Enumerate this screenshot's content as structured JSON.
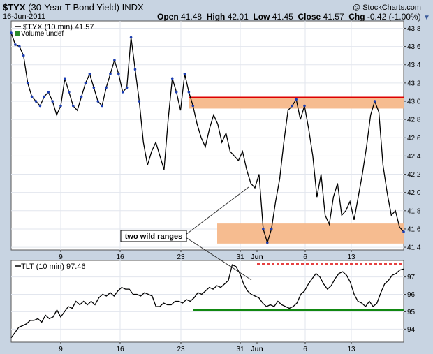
{
  "header": {
    "symbol": "$TYX",
    "name": "(30-Year T-Bond Yield)",
    "exchange": "INDX",
    "copyright": "@ StockCharts.com",
    "date": "16-Jun-2011",
    "open_label": "Open",
    "open": "41.48",
    "high_label": "High",
    "high": "42.01",
    "low_label": "Low",
    "low": "41.45",
    "close_label": "Close",
    "close": "41.57",
    "chg_label": "Chg",
    "chg": "-0.42 (-1.00%)"
  },
  "colors": {
    "background": "#c8d4e2",
    "panel": "#ffffff",
    "price_line": "#000000",
    "band": "#f5b88a",
    "resistance": "#dd0000",
    "support": "#118811",
    "highlight": "#1a3cb0"
  },
  "chart_data": [
    {
      "type": "line",
      "legend": "$TYX (10 min) 41.57",
      "legend_volume": "Volume undef",
      "ylim": [
        41.37,
        43.88
      ],
      "yticks": [
        "43.8",
        "43.6",
        "43.4",
        "43.2",
        "43.0",
        "42.8",
        "42.6",
        "42.4",
        "42.2",
        "42.0",
        "41.8",
        "41.6",
        "41.4"
      ],
      "x_labels": [
        "9",
        "16",
        "23",
        "31",
        "Jun",
        "6",
        "13"
      ],
      "resistance": 43.04,
      "bands": [
        [
          42.92,
          43.04
        ],
        [
          41.44,
          41.66
        ]
      ],
      "annotation": "two wild ranges",
      "series": [
        {
          "values": [
            43.75,
            43.62,
            43.6,
            43.5,
            43.2,
            43.05,
            43.0,
            42.95,
            43.05,
            43.1,
            43.0,
            42.85,
            42.95,
            43.25,
            43.1,
            42.95,
            42.9,
            43.05,
            43.2,
            43.3,
            43.15,
            43.0,
            42.95,
            43.15,
            43.3,
            43.45,
            43.3,
            43.1,
            43.15,
            43.7,
            43.35,
            43.0,
            42.55,
            42.3,
            42.45,
            42.55,
            42.4,
            42.25,
            42.8,
            43.25,
            43.1,
            42.9,
            43.3,
            43.1,
            42.95,
            42.75,
            42.6,
            42.5,
            42.7,
            42.85,
            42.75,
            42.55,
            42.65,
            42.45,
            42.4,
            42.35,
            42.45,
            42.25,
            42.1,
            42.05,
            42.2,
            41.6,
            41.45,
            41.6,
            41.9,
            42.15,
            42.55,
            42.9,
            42.95,
            43.02,
            42.8,
            42.95,
            42.7,
            42.4,
            41.95,
            42.2,
            41.75,
            41.65,
            41.95,
            42.1,
            41.75,
            41.8,
            41.9,
            41.7,
            41.95,
            42.2,
            42.5,
            42.85,
            43.0,
            42.88,
            42.3,
            42.0,
            41.75,
            41.8,
            41.62,
            41.57
          ]
        }
      ]
    },
    {
      "type": "line",
      "legend": "TLT (10 min) 97.46",
      "ylim": [
        93.25,
        97.95
      ],
      "yticks": [
        "97",
        "96",
        "95",
        "94"
      ],
      "x_labels": [
        "9",
        "16",
        "23",
        "31",
        "Jun",
        "6",
        "13"
      ],
      "resistance": 97.75,
      "support": 95.1,
      "series": [
        {
          "values": [
            93.5,
            93.8,
            94.1,
            94.2,
            94.3,
            94.5,
            94.5,
            94.6,
            94.4,
            94.8,
            94.6,
            94.7,
            95.1,
            94.7,
            95.0,
            95.3,
            95.2,
            95.6,
            95.4,
            95.6,
            95.4,
            95.6,
            95.4,
            95.8,
            96.0,
            95.9,
            96.1,
            95.9,
            96.2,
            96.4,
            96.3,
            96.3,
            96.0,
            96.0,
            95.9,
            96.1,
            96.0,
            95.9,
            95.3,
            95.3,
            95.5,
            95.4,
            95.4,
            95.6,
            95.6,
            95.5,
            95.7,
            95.6,
            95.8,
            96.1,
            96.0,
            96.2,
            96.4,
            96.3,
            96.5,
            96.4,
            96.6,
            96.8,
            97.7,
            97.6,
            97.2,
            96.6,
            96.2,
            96.0,
            95.9,
            95.8,
            95.5,
            95.3,
            95.4,
            95.3,
            95.6,
            95.4,
            95.3,
            95.2,
            95.3,
            95.5,
            96.0,
            96.2,
            96.6,
            96.9,
            97.2,
            97.0,
            96.6,
            96.3,
            96.5,
            96.9,
            97.2,
            97.3,
            97.1,
            96.7,
            96.0,
            95.6,
            95.5,
            95.3,
            95.6,
            95.3,
            95.5,
            96.1,
            96.6,
            96.8,
            97.1,
            97.2,
            97.4,
            97.46
          ]
        }
      ]
    }
  ]
}
